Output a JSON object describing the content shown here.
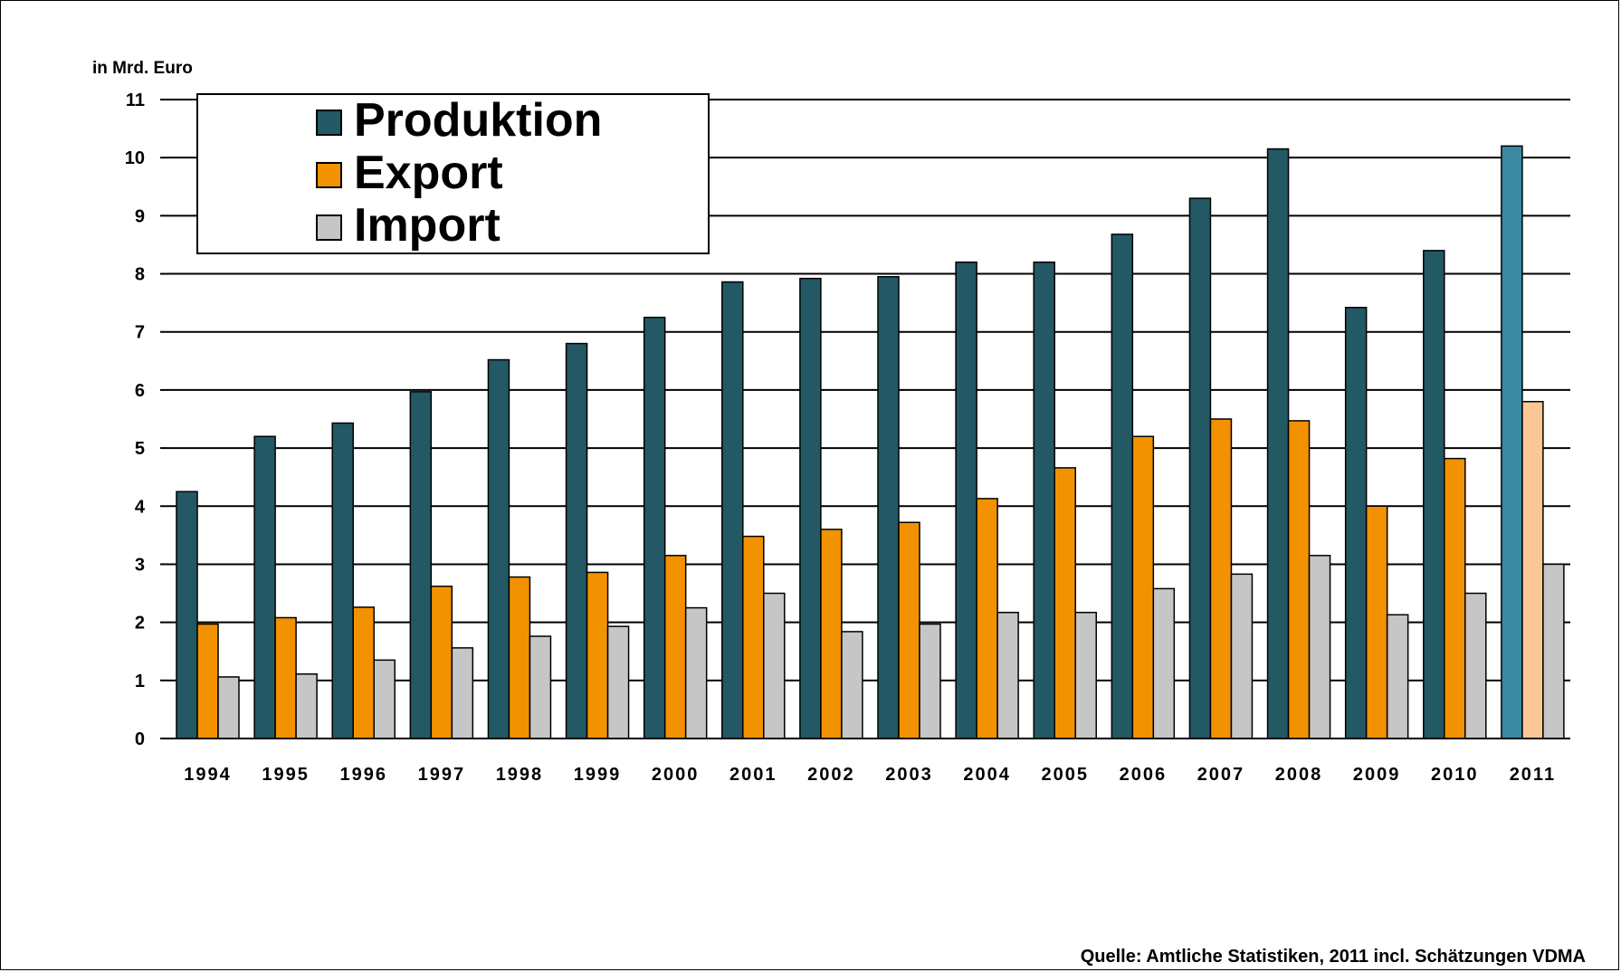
{
  "chart_data": {
    "type": "bar",
    "ylabel": "in Mrd. Euro",
    "ylim": [
      0,
      11
    ],
    "yticks": [
      "0",
      "1",
      "2",
      "3",
      "4",
      "5",
      "6",
      "7",
      "8",
      "9",
      "10",
      "11"
    ],
    "grid": true,
    "legend_position": "top-left",
    "categories": [
      "1994",
      "1995",
      "1996",
      "1997",
      "1998",
      "1999",
      "2000",
      "2001",
      "2002",
      "2003",
      "2004",
      "2005",
      "2006",
      "2007",
      "2008",
      "2009",
      "2010",
      "2011"
    ],
    "series": [
      {
        "name": "Produktion",
        "color": "#235865",
        "highlight_color": "#3a89a1",
        "values": [
          4.25,
          5.2,
          5.43,
          5.97,
          6.52,
          6.8,
          7.25,
          7.86,
          7.92,
          7.95,
          8.2,
          8.2,
          8.68,
          9.3,
          10.15,
          7.42,
          8.4,
          10.2
        ]
      },
      {
        "name": "Export",
        "color": "#f39200",
        "highlight_color": "#fbc797",
        "values": [
          1.97,
          2.08,
          2.26,
          2.62,
          2.78,
          2.86,
          3.15,
          3.48,
          3.6,
          3.72,
          4.13,
          4.66,
          5.2,
          5.5,
          5.47,
          4.0,
          4.82,
          5.8
        ]
      },
      {
        "name": "Import",
        "color": "#c6c6c6",
        "highlight_color": "#c6c6c6",
        "values": [
          1.06,
          1.11,
          1.35,
          1.56,
          1.76,
          1.93,
          2.25,
          2.5,
          1.84,
          1.97,
          2.17,
          2.17,
          2.58,
          2.83,
          3.15,
          2.13,
          2.5,
          3.0
        ]
      }
    ],
    "highlight_category": "2011"
  },
  "source": "Quelle: Amtliche Statistiken, 2011 incl. Schätzungen VDMA"
}
